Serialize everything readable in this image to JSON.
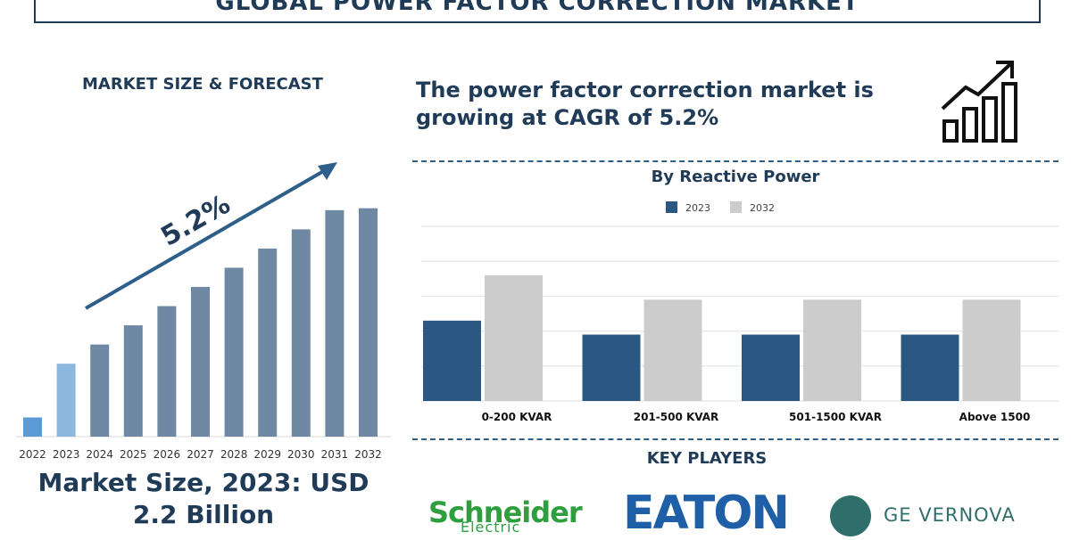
{
  "header": {
    "title": "GLOBAL POWER FACTOR CORRECTION MARKET"
  },
  "left_panel": {
    "heading": "MARKET SIZE & FORECAST",
    "cagr_label": "5.2%",
    "market_size_line1": "Market Size, 2023: USD",
    "market_size_line2": "2.2 Billion"
  },
  "right_panel": {
    "headline_line1": "The power factor correction market is",
    "headline_line2": "growing at CAGR of 5.2%",
    "growth_icon": "growth-bars-arrow-icon",
    "key_players_title": "KEY PLAYERS",
    "key_players": [
      {
        "name": "Schneider",
        "sub": "Electric",
        "color": "#2f9e3e"
      },
      {
        "name": "EATON",
        "color": "#1e5fa8"
      },
      {
        "name": "GE VERNOVA",
        "color": "#2f6e6a"
      }
    ]
  },
  "chart_data": [
    {
      "type": "bar",
      "title": "",
      "categories": [
        "2022",
        "2023",
        "2024",
        "2025",
        "2026",
        "2027",
        "2028",
        "2029",
        "2030",
        "2031",
        "2032"
      ],
      "values": [
        1.0,
        3.8,
        4.8,
        5.8,
        6.8,
        7.8,
        8.8,
        9.8,
        10.8,
        11.8,
        11.9
      ],
      "highlight_colors": {
        "2022": "#5b9bd5",
        "2023": "#8cb8e0",
        "default": "#6f88a3"
      },
      "ylim": [
        0,
        13
      ],
      "grid": false,
      "annotation": "5.2%"
    },
    {
      "type": "bar",
      "title": "By Reactive Power",
      "categories": [
        "0-200 KVAR",
        "201-500 KVAR",
        "501-1500 KVAR",
        "Above 1500"
      ],
      "series": [
        {
          "name": "2023",
          "color": "#2a5882",
          "values": [
            2.3,
            1.9,
            1.9,
            1.9
          ]
        },
        {
          "name": "2032",
          "color": "#cccccc",
          "values": [
            3.6,
            2.9,
            2.9,
            2.9
          ]
        }
      ],
      "ylim": [
        0,
        5
      ],
      "grid": true,
      "legend": "top-center"
    }
  ]
}
